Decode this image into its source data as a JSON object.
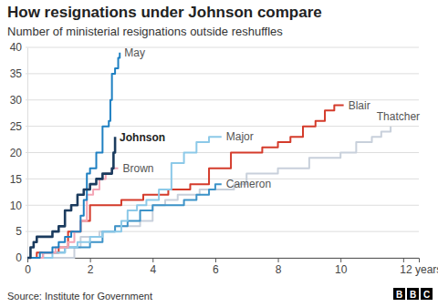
{
  "chart_data": {
    "type": "line",
    "title": "How resignations under Johnson compare",
    "subtitle": "Number of ministerial resignations outside reshuffles",
    "source": "Source: Institute for Government",
    "logo": "BBC",
    "line_style": "step",
    "grid": true,
    "xlim": [
      0,
      12.5
    ],
    "xticks": [
      0,
      2,
      4,
      6,
      8,
      10,
      {
        "value": 12,
        "label": "12 years"
      }
    ],
    "ylim": [
      0,
      40
    ],
    "yticks": [
      0,
      5,
      10,
      15,
      20,
      25,
      30,
      35,
      40
    ],
    "series": [
      {
        "name": "May",
        "color": "#1f80c2",
        "x": [
          0,
          0.4,
          0.8,
          1.0,
          1.2,
          1.4,
          1.7,
          1.8,
          1.9,
          2.0,
          2.2,
          2.4,
          2.6,
          2.65,
          2.7,
          2.8,
          2.9,
          2.95
        ],
        "values": [
          0,
          1,
          2,
          3,
          4,
          5,
          8,
          11,
          16,
          17,
          20,
          25,
          26,
          30,
          35,
          36,
          38,
          39
        ]
      },
      {
        "name": "Johnson",
        "color": "#1b3b5e",
        "x": [
          0,
          0.1,
          0.2,
          0.3,
          0.8,
          1.0,
          1.2,
          1.4,
          1.6,
          1.8,
          2.0,
          2.2,
          2.4,
          2.7,
          2.75,
          2.8
        ],
        "values": [
          0,
          2,
          3,
          4,
          5,
          6,
          9,
          10,
          12,
          13,
          14,
          15,
          16,
          17,
          20,
          23
        ]
      },
      {
        "name": "Brown",
        "color": "#f4a5b5",
        "x": [
          0,
          0.5,
          0.9,
          1.3,
          1.5,
          1.7,
          1.9,
          2.1,
          2.3,
          2.5,
          2.7,
          2.9
        ],
        "values": [
          0,
          1,
          2,
          3,
          5,
          7,
          12,
          13,
          15,
          16,
          17,
          17
        ]
      },
      {
        "name": "Major",
        "color": "#8cc9e8",
        "x": [
          0,
          0.8,
          1.2,
          1.6,
          2.0,
          2.4,
          3.0,
          3.2,
          3.5,
          3.8,
          4.2,
          4.6,
          5.0,
          5.4,
          5.8,
          6.2
        ],
        "values": [
          0,
          1,
          2,
          3,
          4,
          5,
          7,
          9,
          10,
          11,
          13,
          18,
          20,
          22,
          23,
          23
        ]
      },
      {
        "name": "Blair",
        "color": "#d43b2b",
        "x": [
          0,
          0.3,
          1.0,
          1.3,
          1.7,
          2.0,
          3.0,
          3.7,
          4.5,
          5.2,
          5.8,
          6.5,
          7.5,
          8.0,
          8.4,
          8.8,
          9.2,
          9.5,
          9.8,
          10.1
        ],
        "values": [
          0,
          1,
          2,
          5,
          7,
          10,
          11,
          12,
          13,
          14,
          17,
          20,
          21,
          22,
          23,
          25,
          26,
          28,
          29,
          29
        ]
      },
      {
        "name": "Cameron",
        "color": "#3d93c8",
        "x": [
          0,
          0.5,
          1.2,
          2.0,
          2.4,
          2.8,
          3.2,
          3.6,
          4.0,
          5.0,
          5.4,
          5.8,
          6.0,
          6.2
        ],
        "values": [
          0,
          1,
          2,
          3,
          5,
          6,
          7,
          9,
          10,
          11,
          12,
          13,
          14,
          14
        ]
      },
      {
        "name": "Thatcher",
        "color": "#c8d0db",
        "x": [
          0,
          1.5,
          1.7,
          2.3,
          2.8,
          3.6,
          4.0,
          4.4,
          4.8,
          5.5,
          6.6,
          7.0,
          8.0,
          9.0,
          10.0,
          10.5,
          11.0,
          11.3,
          11.6
        ],
        "values": [
          0,
          2,
          4,
          5,
          6,
          7,
          10,
          11,
          12,
          13,
          14,
          16,
          17,
          19,
          20,
          22,
          23,
          24,
          25
        ]
      }
    ]
  }
}
